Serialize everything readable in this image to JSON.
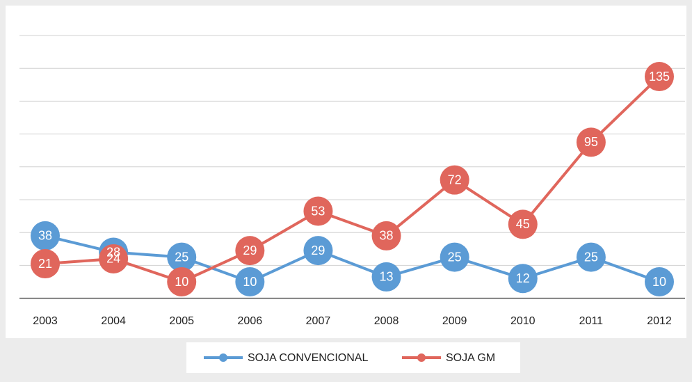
{
  "chart_data": {
    "type": "line",
    "categories": [
      "2003",
      "2004",
      "2005",
      "2006",
      "2007",
      "2008",
      "2009",
      "2010",
      "2011",
      "2012"
    ],
    "series": [
      {
        "name": "SOJA CONVENCIONAL",
        "color": "#5b9bd5",
        "values": [
          38,
          28,
          25,
          10,
          29,
          13,
          25,
          12,
          25,
          10
        ]
      },
      {
        "name": "SOJA GM",
        "color": "#e0665c",
        "values": [
          21,
          24,
          10,
          29,
          53,
          38,
          72,
          45,
          95,
          135
        ]
      }
    ],
    "ylim": [
      0,
      180
    ],
    "yticks": [
      0,
      20,
      40,
      60,
      80,
      100,
      120,
      140,
      160
    ],
    "grid": true,
    "legend": "bottom"
  }
}
